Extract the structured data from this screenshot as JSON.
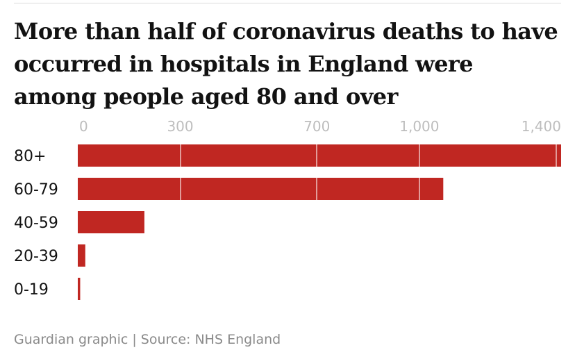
{
  "title": "More than half of coronavirus deaths to have occurred in hospitals in England were among people aged 80 and over",
  "source": "Guardian graphic | Source: NHS England",
  "colors": {
    "bar": "#c02722",
    "grid": "#ffffff",
    "tick_text": "#bdbdbd",
    "label_text": "#121212"
  },
  "chart_data": {
    "type": "bar",
    "orientation": "horizontal",
    "categories": [
      "80+",
      "60-79",
      "40-59",
      "20-39",
      "0-19"
    ],
    "values": [
      1415,
      1070,
      195,
      22,
      7
    ],
    "xticks": [
      0,
      300,
      700,
      1000,
      1400
    ],
    "xtick_labels": [
      "0",
      "300",
      "700",
      "1,000",
      "1,400"
    ],
    "xlim": [
      0,
      1415
    ],
    "grid": true,
    "xlabel": "",
    "ylabel": ""
  }
}
